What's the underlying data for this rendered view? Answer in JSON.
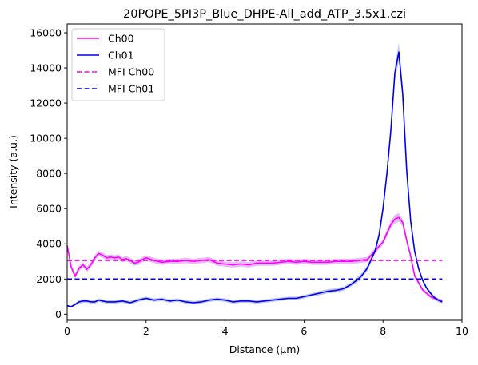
{
  "chart_data": {
    "type": "line",
    "title": "20POPE_5PI3P_Blue_DHPE-All_add_ATP_3.5x1.czi",
    "xlabel": "Distance (μm)",
    "ylabel": "Intensity (a.u.)",
    "xlim": [
      0,
      10
    ],
    "ylim": [
      -350,
      16500
    ],
    "xticks": [
      0,
      2,
      4,
      6,
      8,
      10
    ],
    "yticks": [
      0,
      2000,
      4000,
      6000,
      8000,
      10000,
      12000,
      14000,
      16000
    ],
    "grid": false,
    "legend_position": "top-left",
    "series": [
      {
        "name": "Ch00",
        "style": "solid",
        "color": "#ff00ff",
        "band_color": "#cc88ee",
        "x": [
          0,
          0.1,
          0.2,
          0.3,
          0.4,
          0.5,
          0.6,
          0.7,
          0.8,
          0.9,
          1.0,
          1.1,
          1.2,
          1.3,
          1.4,
          1.5,
          1.6,
          1.7,
          1.8,
          1.9,
          2.0,
          2.2,
          2.4,
          2.6,
          2.8,
          3.0,
          3.2,
          3.4,
          3.6,
          3.8,
          4.0,
          4.2,
          4.4,
          4.6,
          4.8,
          5.0,
          5.2,
          5.4,
          5.6,
          5.8,
          6.0,
          6.2,
          6.4,
          6.6,
          6.8,
          7.0,
          7.2,
          7.4,
          7.6,
          7.8,
          8.0,
          8.1,
          8.2,
          8.3,
          8.4,
          8.5,
          8.6,
          8.7,
          8.8,
          9.0,
          9.2,
          9.4,
          9.5
        ],
        "y": [
          3900,
          2700,
          2150,
          2600,
          2800,
          2550,
          2800,
          3200,
          3450,
          3350,
          3200,
          3250,
          3200,
          3250,
          3100,
          3150,
          3050,
          2900,
          2950,
          3100,
          3200,
          3050,
          2950,
          3000,
          3000,
          3050,
          3000,
          3050,
          3100,
          2900,
          2850,
          2800,
          2850,
          2800,
          2900,
          2900,
          2900,
          2950,
          3000,
          2950,
          3000,
          2950,
          2950,
          2950,
          3000,
          3000,
          3000,
          3050,
          3100,
          3600,
          4100,
          4600,
          5100,
          5400,
          5500,
          5200,
          4200,
          3300,
          2200,
          1400,
          1000,
          800,
          750
        ],
        "band": [
          80,
          120,
          120,
          150,
          150,
          150,
          150,
          150,
          150,
          150,
          150,
          150,
          150,
          150,
          150,
          150,
          150,
          150,
          150,
          150,
          150,
          150,
          150,
          150,
          150,
          150,
          150,
          150,
          150,
          150,
          150,
          150,
          150,
          150,
          150,
          150,
          150,
          150,
          150,
          150,
          150,
          150,
          150,
          150,
          150,
          150,
          150,
          150,
          150,
          150,
          150,
          200,
          200,
          250,
          250,
          200,
          150,
          150,
          150,
          100,
          100,
          100,
          100
        ]
      },
      {
        "name": "Ch01",
        "style": "solid",
        "color": "#0000ee",
        "band_color": "#8fa0d8",
        "x": [
          0,
          0.1,
          0.2,
          0.3,
          0.4,
          0.5,
          0.6,
          0.7,
          0.8,
          0.9,
          1.0,
          1.2,
          1.4,
          1.6,
          1.8,
          2.0,
          2.2,
          2.4,
          2.6,
          2.8,
          3.0,
          3.2,
          3.4,
          3.6,
          3.8,
          4.0,
          4.2,
          4.4,
          4.6,
          4.8,
          5.0,
          5.2,
          5.4,
          5.6,
          5.8,
          6.0,
          6.2,
          6.4,
          6.6,
          6.8,
          7.0,
          7.2,
          7.4,
          7.5,
          7.6,
          7.7,
          7.8,
          7.9,
          8.0,
          8.1,
          8.2,
          8.3,
          8.4,
          8.5,
          8.6,
          8.7,
          8.8,
          8.9,
          9.0,
          9.1,
          9.2,
          9.3,
          9.4,
          9.5
        ],
        "y": [
          480,
          420,
          550,
          700,
          750,
          750,
          700,
          700,
          800,
          750,
          700,
          700,
          750,
          650,
          800,
          900,
          800,
          850,
          750,
          800,
          700,
          650,
          700,
          800,
          850,
          800,
          700,
          750,
          750,
          700,
          750,
          800,
          850,
          900,
          900,
          1000,
          1100,
          1200,
          1300,
          1350,
          1450,
          1700,
          2050,
          2300,
          2600,
          3100,
          3600,
          4500,
          6000,
          8000,
          10500,
          13700,
          14900,
          12500,
          8200,
          5300,
          3600,
          2600,
          1950,
          1500,
          1200,
          950,
          800,
          700
        ],
        "band": [
          60,
          60,
          80,
          100,
          100,
          100,
          100,
          100,
          100,
          100,
          100,
          100,
          100,
          100,
          100,
          100,
          100,
          100,
          100,
          100,
          100,
          100,
          100,
          100,
          100,
          100,
          100,
          100,
          100,
          100,
          100,
          100,
          100,
          100,
          100,
          100,
          100,
          120,
          120,
          120,
          120,
          120,
          150,
          150,
          150,
          150,
          150,
          200,
          200,
          250,
          300,
          400,
          550,
          400,
          300,
          200,
          150,
          120,
          100,
          100,
          100,
          100,
          100,
          100
        ]
      },
      {
        "name": "MFI Ch00",
        "style": "dashed",
        "color": "#ff00ff",
        "x": [
          0,
          9.5
        ],
        "y": [
          3050,
          3050
        ]
      },
      {
        "name": "MFI Ch01",
        "style": "dashed",
        "color": "#0000cc",
        "x": [
          0,
          9.5
        ],
        "y": [
          2000,
          2000
        ]
      }
    ]
  }
}
